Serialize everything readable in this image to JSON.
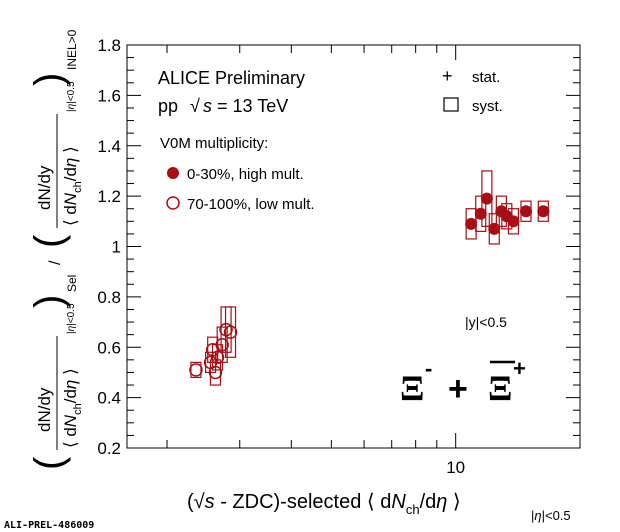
{
  "chart_data": {
    "type": "scatter",
    "title": "ALICE Preliminary",
    "subtitle_prefix": "pp",
    "subtitle_sqrt": "s",
    "subtitle_suffix": "= 13 TeV",
    "legend_title": "V0M multiplicity:",
    "legend_entries": [
      "0-30%, high mult.",
      "70-100%, low mult."
    ],
    "stat_label": "stat.",
    "syst_label": "syst.",
    "rapidity_label": "|y|<0.5",
    "particle_label": "Ξ⁻ + Ξ̄⁺",
    "watermark": "ALI-PREL-486009",
    "xlabel": "(√s - ZDC)-selected ⟨ dN_ch/dη ⟩ |η|<0.5",
    "ylabel": "(dN/dy / ⟨dN_ch/dη⟩_|η|<0.5)_Sel / (dN/dy / ⟨dN_ch/dη⟩_|η|<0.5)_INEL>0",
    "xscale": "log",
    "xlim": [
      1.6,
      20
    ],
    "ylim": [
      0.2,
      1.8
    ],
    "yticks": [
      "0.2",
      "0.4",
      "0.6",
      "0.8",
      "1",
      "1.2",
      "1.4",
      "1.6",
      "1.8"
    ],
    "xticks": [
      "10"
    ],
    "series": [
      {
        "name": "0-30%, high mult.",
        "color": "#a50f15",
        "marker": "filled-circle",
        "points": [
          {
            "x": 10.9,
            "y": 1.09,
            "syst": 0.06
          },
          {
            "x": 11.5,
            "y": 1.13,
            "syst": 0.07
          },
          {
            "x": 11.9,
            "y": 1.19,
            "syst": 0.11
          },
          {
            "x": 12.4,
            "y": 1.07,
            "syst": 0.06
          },
          {
            "x": 12.9,
            "y": 1.14,
            "syst": 0.06
          },
          {
            "x": 13.3,
            "y": 1.12,
            "syst": 0.05
          },
          {
            "x": 13.8,
            "y": 1.1,
            "syst": 0.05
          },
          {
            "x": 14.8,
            "y": 1.14,
            "syst": 0.04
          },
          {
            "x": 16.3,
            "y": 1.14,
            "syst": 0.04
          }
        ]
      },
      {
        "name": "70-100%, low mult.",
        "color": "#a50f15",
        "marker": "open-circle",
        "points": [
          {
            "x": 2.35,
            "y": 0.51,
            "syst": 0.03
          },
          {
            "x": 2.55,
            "y": 0.54,
            "syst": 0.04
          },
          {
            "x": 2.62,
            "y": 0.5,
            "syst": 0.05
          },
          {
            "x": 2.58,
            "y": 0.59,
            "syst": 0.05
          },
          {
            "x": 2.65,
            "y": 0.56,
            "syst": 0.05
          },
          {
            "x": 2.72,
            "y": 0.61,
            "syst": 0.07
          },
          {
            "x": 2.78,
            "y": 0.67,
            "syst": 0.09
          },
          {
            "x": 2.85,
            "y": 0.66,
            "syst": 0.1
          }
        ]
      }
    ]
  }
}
